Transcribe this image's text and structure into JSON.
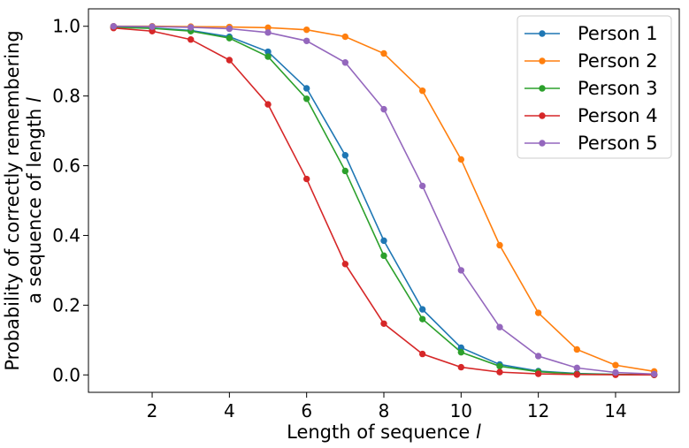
{
  "chart_data": {
    "type": "line",
    "xlabel": "Length of sequence",
    "xlabel_var": "l",
    "ylabel_line1": "Probability of correctly remembering",
    "ylabel_line2": "a sequence of length",
    "ylabel_var": "l",
    "xlim": [
      0.35,
      15.65
    ],
    "ylim": [
      -0.05,
      1.05
    ],
    "xticks": [
      2,
      4,
      6,
      8,
      10,
      12,
      14
    ],
    "yticks": [
      0.0,
      0.2,
      0.4,
      0.6,
      0.8,
      1.0
    ],
    "xtick_labels": [
      "2",
      "4",
      "6",
      "8",
      "10",
      "12",
      "14"
    ],
    "ytick_labels": [
      "0.0",
      "0.2",
      "0.4",
      "0.6",
      "0.8",
      "1.0"
    ],
    "grid": false,
    "legend_position": "top-right",
    "x": [
      1,
      2,
      3,
      4,
      5,
      6,
      7,
      8,
      9,
      10,
      11,
      12,
      13,
      14,
      15
    ],
    "series": [
      {
        "name": "Person 1",
        "color": "#1f77b4",
        "values": [
          0.998,
          0.995,
          0.988,
          0.97,
          0.927,
          0.822,
          0.63,
          0.385,
          0.188,
          0.078,
          0.03,
          0.011,
          0.004,
          0.0015,
          0.0005
        ]
      },
      {
        "name": "Person 2",
        "color": "#ff7f0e",
        "values": [
          1.0,
          1.0,
          0.999,
          0.998,
          0.996,
          0.99,
          0.97,
          0.922,
          0.815,
          0.618,
          0.372,
          0.178,
          0.073,
          0.028,
          0.01
        ]
      },
      {
        "name": "Person 3",
        "color": "#2ca02c",
        "values": [
          0.997,
          0.994,
          0.986,
          0.966,
          0.913,
          0.792,
          0.585,
          0.342,
          0.16,
          0.065,
          0.025,
          0.009,
          0.003,
          0.0012,
          0.0004
        ]
      },
      {
        "name": "Person 4",
        "color": "#d62728",
        "values": [
          0.995,
          0.986,
          0.962,
          0.903,
          0.776,
          0.562,
          0.318,
          0.147,
          0.06,
          0.022,
          0.008,
          0.003,
          0.001,
          0.0004,
          0.0001
        ]
      },
      {
        "name": "Person 5",
        "color": "#9467bd",
        "values": [
          1.0,
          0.999,
          0.997,
          0.993,
          0.982,
          0.958,
          0.896,
          0.762,
          0.542,
          0.3,
          0.137,
          0.054,
          0.02,
          0.007,
          0.0025
        ]
      }
    ]
  }
}
